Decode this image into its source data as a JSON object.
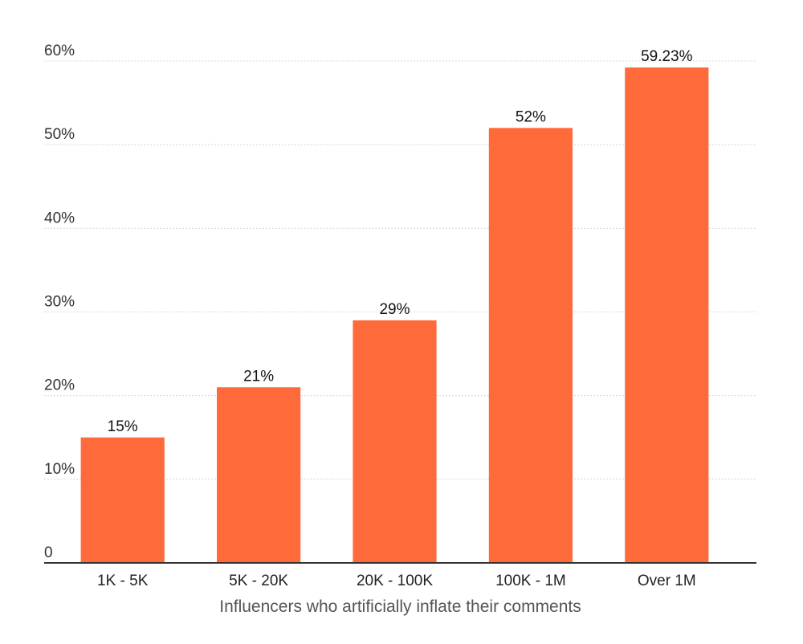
{
  "chart_data": {
    "type": "bar",
    "categories": [
      "1K - 5K",
      "5K - 20K",
      "20K - 100K",
      "100K - 1M",
      "Over 1M"
    ],
    "values": [
      15,
      21,
      29,
      52,
      59.23
    ],
    "data_labels": [
      "15%",
      "21%",
      "29%",
      "52%",
      "59.23%"
    ],
    "yticks": [
      0,
      10,
      20,
      30,
      40,
      50,
      60
    ],
    "ytick_labels": [
      "0",
      "10%",
      "20%",
      "30%",
      "40%",
      "50%",
      "60%"
    ],
    "ylim": [
      0,
      60
    ],
    "xlabel": "Influencers who artificially inflate their comments",
    "ylabel": "",
    "grid": true,
    "bar_color": "#ff6a3a"
  }
}
